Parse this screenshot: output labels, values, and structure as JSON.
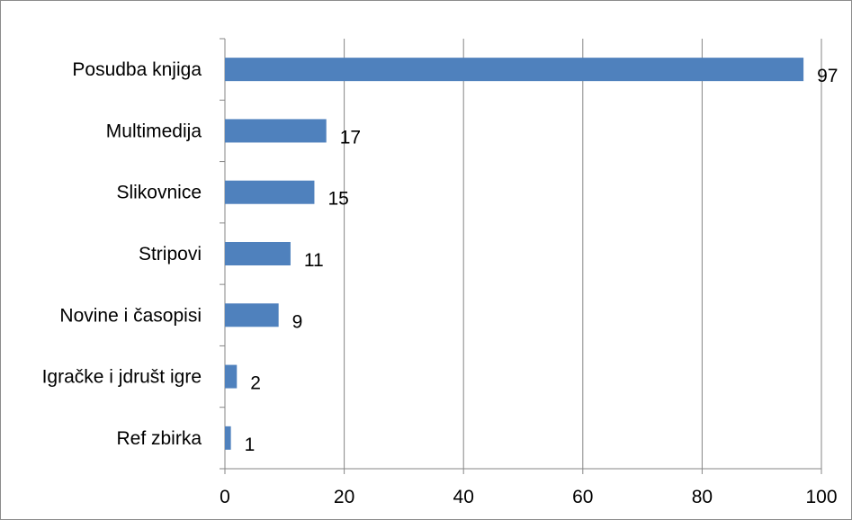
{
  "chart_data": {
    "type": "bar",
    "orientation": "horizontal",
    "categories": [
      "Posudba knjiga",
      "Multimedija",
      "Slikovnice",
      "Stripovi",
      "Novine i časopisi",
      "Igračke i jdrušt igre",
      "Ref zbirka"
    ],
    "values": [
      97,
      17,
      15,
      11,
      9,
      2,
      1
    ],
    "xlim": [
      0,
      100
    ],
    "xticks": [
      0,
      20,
      40,
      60,
      80,
      100
    ],
    "grid": true,
    "legend": "none",
    "title": "",
    "xlabel": "",
    "ylabel": "",
    "colors": {
      "bar": "#4f81bd",
      "grid": "#868686",
      "axis": "#868686"
    }
  }
}
